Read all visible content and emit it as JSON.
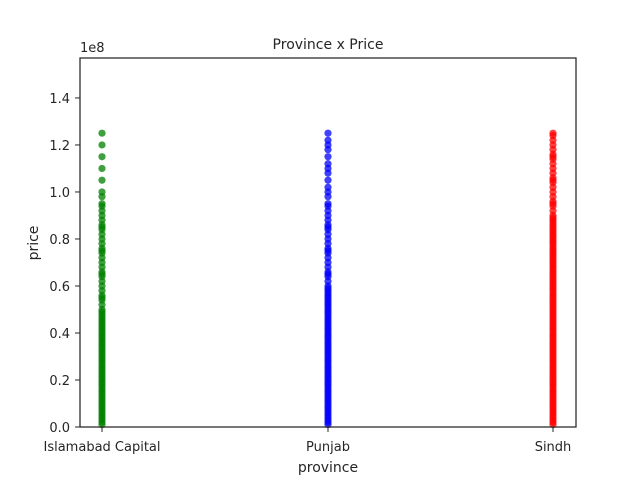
{
  "chart_data": {
    "type": "scatter",
    "title": "Province x Price",
    "xlabel": "province",
    "ylabel": "price",
    "offset_text": "1e8",
    "categories": [
      "Islamabad Capital",
      "Punjab",
      "Sindh"
    ],
    "yticks": [
      "0.0",
      "0.2",
      "0.4",
      "0.6",
      "0.8",
      "1.0",
      "1.2",
      "1.4"
    ],
    "ylim": [
      0,
      1.57
    ],
    "y_scale_multiplier": 100000000,
    "grid": false,
    "series": [
      {
        "category": "Islamabad Capital",
        "color": "#008000",
        "values": [
          0.01,
          0.02,
          0.03,
          0.04,
          0.05,
          0.06,
          0.07,
          0.08,
          0.09,
          0.1,
          0.11,
          0.12,
          0.13,
          0.14,
          0.15,
          0.16,
          0.17,
          0.18,
          0.19,
          0.2,
          0.21,
          0.22,
          0.23,
          0.24,
          0.25,
          0.26,
          0.27,
          0.28,
          0.29,
          0.3,
          0.31,
          0.32,
          0.33,
          0.34,
          0.35,
          0.36,
          0.37,
          0.38,
          0.39,
          0.4,
          0.41,
          0.42,
          0.43,
          0.44,
          0.45,
          0.46,
          0.47,
          0.48,
          0.49,
          0.5,
          0.52,
          0.54,
          0.55,
          0.56,
          0.58,
          0.6,
          0.62,
          0.64,
          0.65,
          0.66,
          0.68,
          0.7,
          0.72,
          0.74,
          0.75,
          0.76,
          0.78,
          0.8,
          0.82,
          0.84,
          0.85,
          0.86,
          0.88,
          0.9,
          0.92,
          0.94,
          0.95,
          0.98,
          1.0,
          1.05,
          1.1,
          1.15,
          1.2,
          1.25
        ]
      },
      {
        "category": "Punjab",
        "color": "#0000ff",
        "values": [
          0.01,
          0.02,
          0.03,
          0.04,
          0.05,
          0.06,
          0.07,
          0.08,
          0.09,
          0.1,
          0.11,
          0.12,
          0.13,
          0.14,
          0.15,
          0.16,
          0.17,
          0.18,
          0.19,
          0.2,
          0.21,
          0.22,
          0.23,
          0.24,
          0.25,
          0.26,
          0.27,
          0.28,
          0.29,
          0.3,
          0.31,
          0.32,
          0.33,
          0.34,
          0.35,
          0.36,
          0.37,
          0.38,
          0.39,
          0.4,
          0.41,
          0.42,
          0.43,
          0.44,
          0.45,
          0.46,
          0.47,
          0.48,
          0.49,
          0.5,
          0.51,
          0.52,
          0.53,
          0.54,
          0.55,
          0.56,
          0.57,
          0.58,
          0.59,
          0.6,
          0.62,
          0.64,
          0.65,
          0.66,
          0.68,
          0.7,
          0.72,
          0.74,
          0.75,
          0.76,
          0.78,
          0.8,
          0.82,
          0.84,
          0.85,
          0.86,
          0.88,
          0.9,
          0.92,
          0.94,
          0.95,
          0.98,
          1.0,
          1.02,
          1.05,
          1.08,
          1.1,
          1.12,
          1.15,
          1.18,
          1.2,
          1.22,
          1.25
        ]
      },
      {
        "category": "Sindh",
        "color": "#ff0000",
        "values": [
          0.01,
          0.02,
          0.03,
          0.04,
          0.05,
          0.06,
          0.07,
          0.08,
          0.09,
          0.1,
          0.11,
          0.12,
          0.13,
          0.14,
          0.15,
          0.16,
          0.17,
          0.18,
          0.19,
          0.2,
          0.21,
          0.22,
          0.23,
          0.24,
          0.25,
          0.26,
          0.27,
          0.28,
          0.29,
          0.3,
          0.31,
          0.32,
          0.33,
          0.34,
          0.35,
          0.36,
          0.37,
          0.38,
          0.39,
          0.4,
          0.41,
          0.42,
          0.43,
          0.44,
          0.45,
          0.46,
          0.47,
          0.48,
          0.49,
          0.5,
          0.51,
          0.52,
          0.53,
          0.54,
          0.55,
          0.56,
          0.57,
          0.58,
          0.59,
          0.6,
          0.61,
          0.62,
          0.63,
          0.64,
          0.65,
          0.66,
          0.67,
          0.68,
          0.69,
          0.7,
          0.71,
          0.72,
          0.73,
          0.74,
          0.75,
          0.76,
          0.77,
          0.78,
          0.79,
          0.8,
          0.81,
          0.82,
          0.83,
          0.84,
          0.85,
          0.86,
          0.87,
          0.88,
          0.89,
          0.9,
          0.92,
          0.94,
          0.95,
          0.96,
          0.98,
          1.0,
          1.02,
          1.04,
          1.05,
          1.06,
          1.08,
          1.1,
          1.12,
          1.14,
          1.15,
          1.16,
          1.18,
          1.2,
          1.22,
          1.24,
          1.25
        ]
      }
    ]
  }
}
